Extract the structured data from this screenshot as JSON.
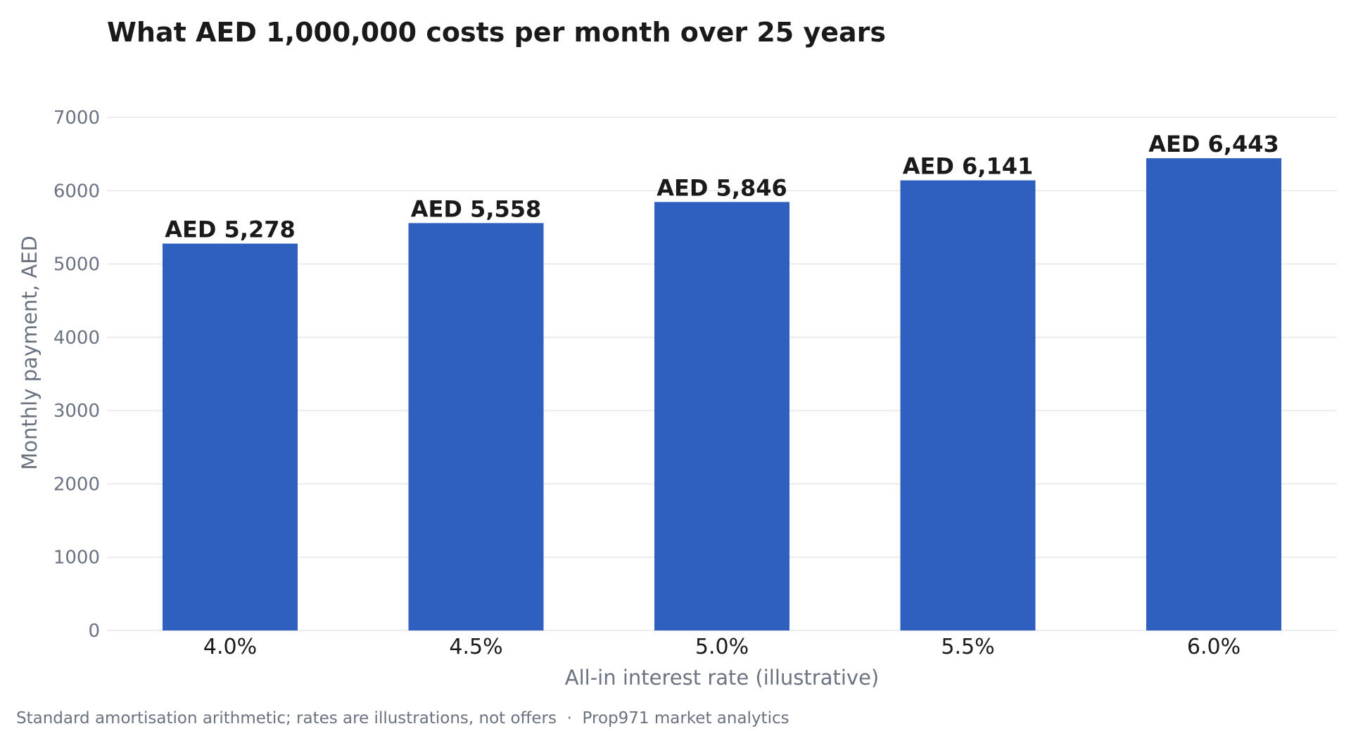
{
  "chart_data": {
    "type": "bar",
    "title": "What AED 1,000,000 costs per month over 25 years",
    "xlabel": "All-in interest rate (illustrative)",
    "ylabel": "Monthly payment, AED",
    "categories": [
      "4.0%",
      "4.5%",
      "5.0%",
      "5.5%",
      "6.0%"
    ],
    "values": [
      5278,
      5558,
      5846,
      6141,
      6443
    ],
    "value_labels": [
      "AED 5,278",
      "AED 5,558",
      "AED 5,846",
      "AED 6,141",
      "AED 6,443"
    ],
    "ylim": [
      0,
      7000
    ],
    "yticks": [
      0,
      1000,
      2000,
      3000,
      4000,
      5000,
      6000,
      7000
    ],
    "grid": true,
    "legend": "none",
    "bar_color": "#3060bf"
  },
  "footnote": "Standard amortisation arithmetic; rates are illustrations, not offers  ·  Prop971 market analytics"
}
